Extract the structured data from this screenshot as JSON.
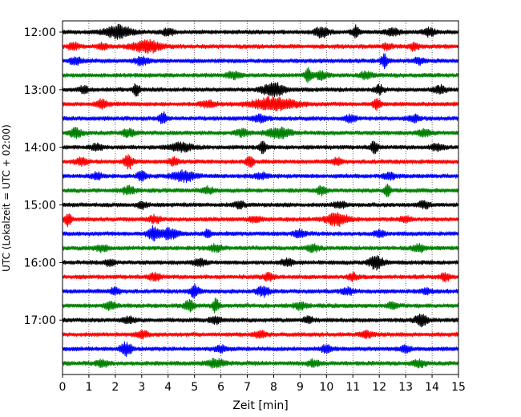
{
  "chart_data": {
    "type": "line",
    "title": "",
    "xlabel": "Zeit  [min]",
    "ylabel": "UTC (Lokalzeit = UTC + 02:00)",
    "xlim": [
      0,
      15
    ],
    "x_ticks": [
      "0",
      "1",
      "2",
      "3",
      "4",
      "5",
      "6",
      "7",
      "8",
      "9",
      "10",
      "11",
      "12",
      "13",
      "14",
      "15"
    ],
    "y_ticks": [
      {
        "label": "12:00",
        "trace": 0
      },
      {
        "label": "13:00",
        "trace": 4
      },
      {
        "label": "14:00",
        "trace": 8
      },
      {
        "label": "15:00",
        "trace": 12
      },
      {
        "label": "16:00",
        "trace": 16
      },
      {
        "label": "17:00",
        "trace": 20
      }
    ],
    "grid": "vertical-dotted",
    "colors": [
      "#000000",
      "#ff0000",
      "#0000ff",
      "#008000"
    ],
    "traces": [
      {
        "start": "12:00",
        "color": "#000000",
        "events": [
          [
            2.1,
            0.9,
            1.0
          ],
          [
            9.8,
            0.5,
            0.8
          ],
          [
            11.1,
            0.2,
            0.9
          ],
          [
            4.0,
            0.4,
            0.5
          ],
          [
            12.5,
            0.5,
            0.5
          ],
          [
            13.9,
            0.4,
            0.6
          ]
        ]
      },
      {
        "start": "12:15",
        "color": "#ff0000",
        "events": [
          [
            3.2,
            1.0,
            1.0
          ],
          [
            0.4,
            0.3,
            0.6
          ],
          [
            12.3,
            0.3,
            0.5
          ],
          [
            1.5,
            0.3,
            0.5
          ],
          [
            13.3,
            0.3,
            0.5
          ]
        ]
      },
      {
        "start": "12:30",
        "color": "#0000ff",
        "events": [
          [
            12.2,
            0.2,
            1.0
          ],
          [
            3.0,
            0.4,
            0.6
          ],
          [
            0.5,
            0.4,
            0.5
          ],
          [
            13.5,
            0.3,
            0.5
          ]
        ]
      },
      {
        "start": "12:45",
        "color": "#008000",
        "events": [
          [
            9.3,
            0.2,
            1.0
          ],
          [
            9.8,
            0.4,
            0.6
          ],
          [
            6.5,
            0.5,
            0.5
          ],
          [
            11.5,
            0.4,
            0.5
          ]
        ]
      },
      {
        "start": "13:00",
        "color": "#000000",
        "events": [
          [
            8.0,
            0.8,
            1.0
          ],
          [
            2.8,
            0.2,
            0.9
          ],
          [
            12.0,
            0.3,
            0.6
          ],
          [
            0.8,
            0.3,
            0.5
          ],
          [
            14.3,
            0.4,
            0.5
          ]
        ]
      },
      {
        "start": "13:15",
        "color": "#ff0000",
        "events": [
          [
            8.0,
            1.6,
            1.0
          ],
          [
            11.9,
            0.2,
            1.0
          ],
          [
            1.5,
            0.4,
            0.6
          ],
          [
            5.5,
            0.5,
            0.5
          ]
        ]
      },
      {
        "start": "13:30",
        "color": "#0000ff",
        "events": [
          [
            3.8,
            0.2,
            1.0
          ],
          [
            7.5,
            0.5,
            0.5
          ],
          [
            10.9,
            0.4,
            0.5
          ],
          [
            13.3,
            0.4,
            0.5
          ]
        ]
      },
      {
        "start": "13:45",
        "color": "#008000",
        "events": [
          [
            0.5,
            0.4,
            0.7
          ],
          [
            8.2,
            0.8,
            0.8
          ],
          [
            2.5,
            0.4,
            0.6
          ],
          [
            6.8,
            0.4,
            0.5
          ],
          [
            13.7,
            0.4,
            0.5
          ]
        ]
      },
      {
        "start": "14:00",
        "color": "#000000",
        "events": [
          [
            11.8,
            0.2,
            1.0
          ],
          [
            7.6,
            0.2,
            0.9
          ],
          [
            4.5,
            0.8,
            0.6
          ],
          [
            1.3,
            0.4,
            0.5
          ],
          [
            14.2,
            0.4,
            0.5
          ]
        ]
      },
      {
        "start": "14:15",
        "color": "#ff0000",
        "events": [
          [
            2.5,
            0.3,
            1.0
          ],
          [
            7.1,
            0.2,
            0.8
          ],
          [
            4.2,
            0.3,
            0.6
          ],
          [
            10.4,
            0.3,
            0.5
          ],
          [
            0.7,
            0.4,
            0.5
          ]
        ]
      },
      {
        "start": "14:30",
        "color": "#0000ff",
        "events": [
          [
            4.6,
            0.8,
            0.8
          ],
          [
            3.0,
            0.3,
            0.7
          ],
          [
            1.3,
            0.3,
            0.5
          ],
          [
            7.5,
            0.4,
            0.5
          ],
          [
            12.4,
            0.4,
            0.5
          ]
        ]
      },
      {
        "start": "14:45",
        "color": "#008000",
        "events": [
          [
            12.3,
            0.2,
            1.0
          ],
          [
            2.5,
            0.4,
            0.6
          ],
          [
            9.8,
            0.3,
            0.6
          ],
          [
            5.5,
            0.4,
            0.5
          ]
        ]
      },
      {
        "start": "15:00",
        "color": "#000000",
        "events": [
          [
            3.0,
            0.3,
            0.5
          ],
          [
            6.7,
            0.3,
            0.5
          ],
          [
            10.5,
            0.4,
            0.5
          ],
          [
            13.7,
            0.4,
            0.5
          ]
        ]
      },
      {
        "start": "15:15",
        "color": "#ff0000",
        "events": [
          [
            10.4,
            0.8,
            1.0
          ],
          [
            0.2,
            0.2,
            0.9
          ],
          [
            3.5,
            0.4,
            0.5
          ],
          [
            7.3,
            0.4,
            0.5
          ],
          [
            13.0,
            0.3,
            0.5
          ]
        ]
      },
      {
        "start": "15:30",
        "color": "#0000ff",
        "events": [
          [
            3.4,
            0.3,
            1.0
          ],
          [
            4.0,
            0.7,
            0.8
          ],
          [
            5.5,
            0.2,
            0.6
          ],
          [
            9.0,
            0.4,
            0.5
          ],
          [
            12.0,
            0.3,
            0.5
          ]
        ]
      },
      {
        "start": "15:45",
        "color": "#008000",
        "events": [
          [
            1.5,
            0.4,
            0.5
          ],
          [
            5.8,
            0.4,
            0.5
          ],
          [
            9.5,
            0.4,
            0.5
          ],
          [
            13.5,
            0.4,
            0.5
          ]
        ]
      },
      {
        "start": "16:00",
        "color": "#000000",
        "events": [
          [
            11.9,
            0.5,
            1.0
          ],
          [
            5.2,
            0.4,
            0.5
          ],
          [
            8.5,
            0.4,
            0.5
          ],
          [
            1.8,
            0.3,
            0.5
          ]
        ]
      },
      {
        "start": "16:15",
        "color": "#ff0000",
        "events": [
          [
            14.5,
            0.3,
            0.6
          ],
          [
            3.5,
            0.4,
            0.5
          ],
          [
            7.8,
            0.4,
            0.5
          ],
          [
            11.0,
            0.3,
            0.5
          ]
        ]
      },
      {
        "start": "16:30",
        "color": "#0000ff",
        "events": [
          [
            5.0,
            0.3,
            0.9
          ],
          [
            7.6,
            0.4,
            0.7
          ],
          [
            2.0,
            0.3,
            0.5
          ],
          [
            10.8,
            0.4,
            0.5
          ],
          [
            13.8,
            0.3,
            0.5
          ]
        ]
      },
      {
        "start": "16:45",
        "color": "#008000",
        "events": [
          [
            5.8,
            0.2,
            1.0
          ],
          [
            4.8,
            0.3,
            0.8
          ],
          [
            9.0,
            0.4,
            0.5
          ],
          [
            1.8,
            0.4,
            0.5
          ],
          [
            12.5,
            0.3,
            0.5
          ]
        ]
      },
      {
        "start": "17:00",
        "color": "#000000",
        "events": [
          [
            13.6,
            0.4,
            0.9
          ],
          [
            9.3,
            0.3,
            0.5
          ],
          [
            2.5,
            0.4,
            0.5
          ],
          [
            5.8,
            0.4,
            0.5
          ]
        ]
      },
      {
        "start": "17:15",
        "color": "#ff0000",
        "events": [
          [
            3.0,
            0.4,
            0.5
          ],
          [
            7.5,
            0.4,
            0.5
          ],
          [
            11.5,
            0.4,
            0.5
          ]
        ]
      },
      {
        "start": "17:30",
        "color": "#0000ff",
        "events": [
          [
            2.4,
            0.4,
            1.0
          ],
          [
            6.0,
            0.4,
            0.5
          ],
          [
            10.0,
            0.4,
            0.5
          ],
          [
            13.0,
            0.3,
            0.5
          ]
        ]
      },
      {
        "start": "17:45",
        "color": "#008000",
        "events": [
          [
            5.8,
            0.6,
            0.6
          ],
          [
            1.5,
            0.4,
            0.5
          ],
          [
            9.5,
            0.4,
            0.5
          ],
          [
            13.5,
            0.4,
            0.5
          ]
        ]
      }
    ]
  }
}
